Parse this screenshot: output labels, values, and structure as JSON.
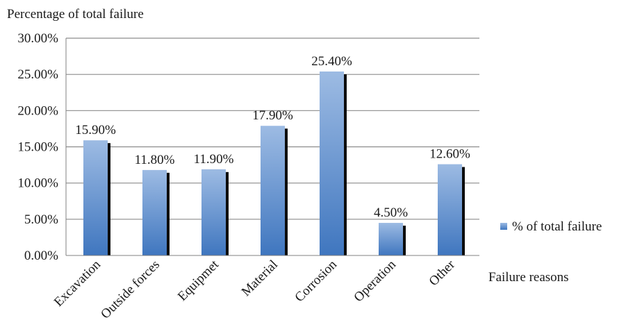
{
  "chart_data": {
    "type": "bar",
    "title": "",
    "ylabel": "Percentage of total failure",
    "xlabel": "Failure reasons",
    "categories": [
      "Excavation",
      "Outside forces",
      "Equipmet",
      "Material",
      "Corrosion",
      "Operation",
      "Other"
    ],
    "series": [
      {
        "name": "% of total failure",
        "values": [
          15.9,
          11.8,
          11.9,
          17.9,
          25.4,
          4.5,
          12.6
        ],
        "labels": [
          "15.90%",
          "11.80%",
          "11.90%",
          "17.90%",
          "25.40%",
          "4.50%",
          "12.60%"
        ]
      }
    ],
    "ylim": [
      0,
      30
    ],
    "yticks": [
      "0.00%",
      "5.00%",
      "10.00%",
      "15.00%",
      "20.00%",
      "25.00%",
      "30.00%"
    ],
    "grid": true,
    "legend_position": "right",
    "colors": {
      "bar_light": "#9dbbe3",
      "bar_dark": "#3f76bf",
      "shadow": "#0a0a0a",
      "gridline": "#8c8c8c",
      "axis": "#808080"
    }
  }
}
